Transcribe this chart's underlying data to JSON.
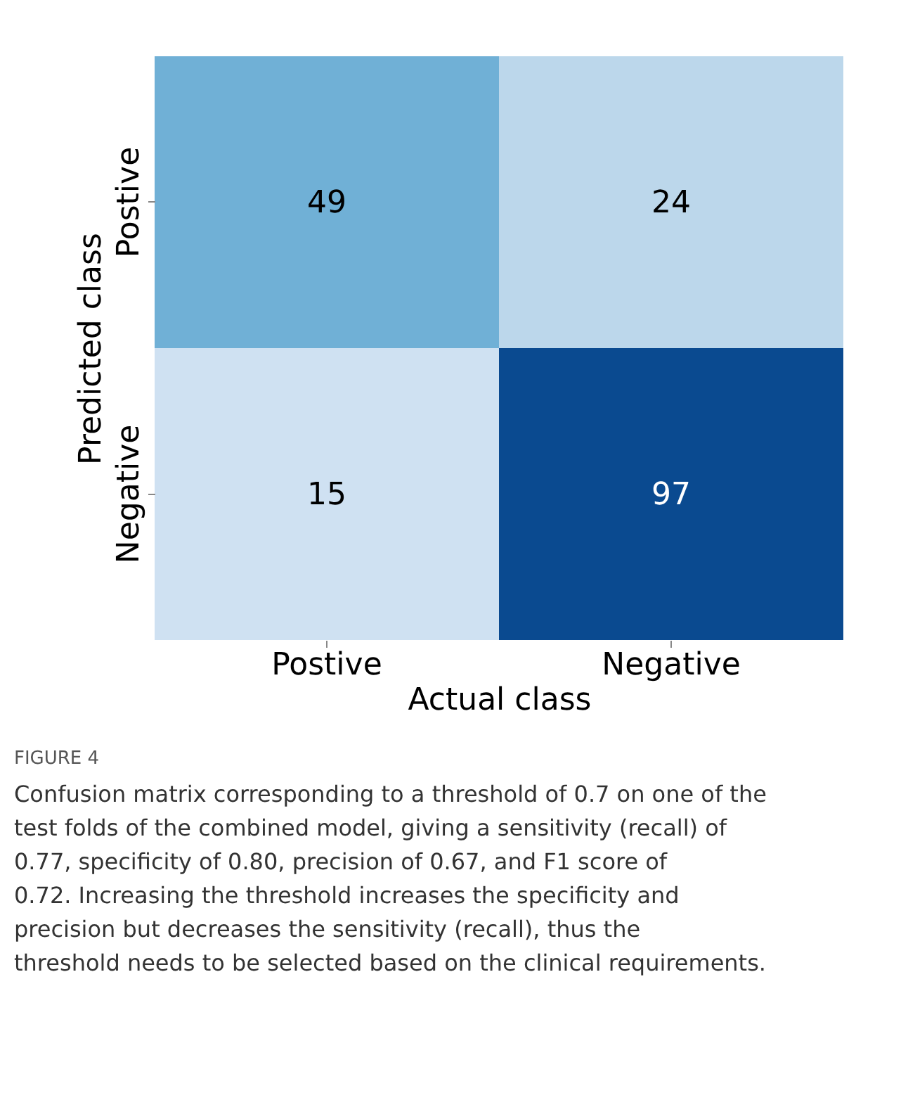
{
  "chart_data": {
    "type": "heatmap",
    "categories": [
      "Postive",
      "Negative"
    ],
    "y_categories": [
      "Postive",
      "Negative"
    ],
    "cells": [
      [
        49,
        24
      ],
      [
        15,
        97
      ]
    ],
    "data_labels": true,
    "xlabel": "Actual class",
    "ylabel": "Predicted class",
    "annotations": [
      "FIGURE 4",
      "Confusion matrix corresponding to a threshold of 0.7 on one of the test folds of the combined model, giving a sensitivity (recall) of 0.77, specificity of 0.80, precision of 0.67, and F1 score of 0.72. Increasing the threshold increases the specificity and precision but decreases the sensitivity (recall), thus the threshold needs to be selected based on the clinical requirements."
    ]
  }
}
